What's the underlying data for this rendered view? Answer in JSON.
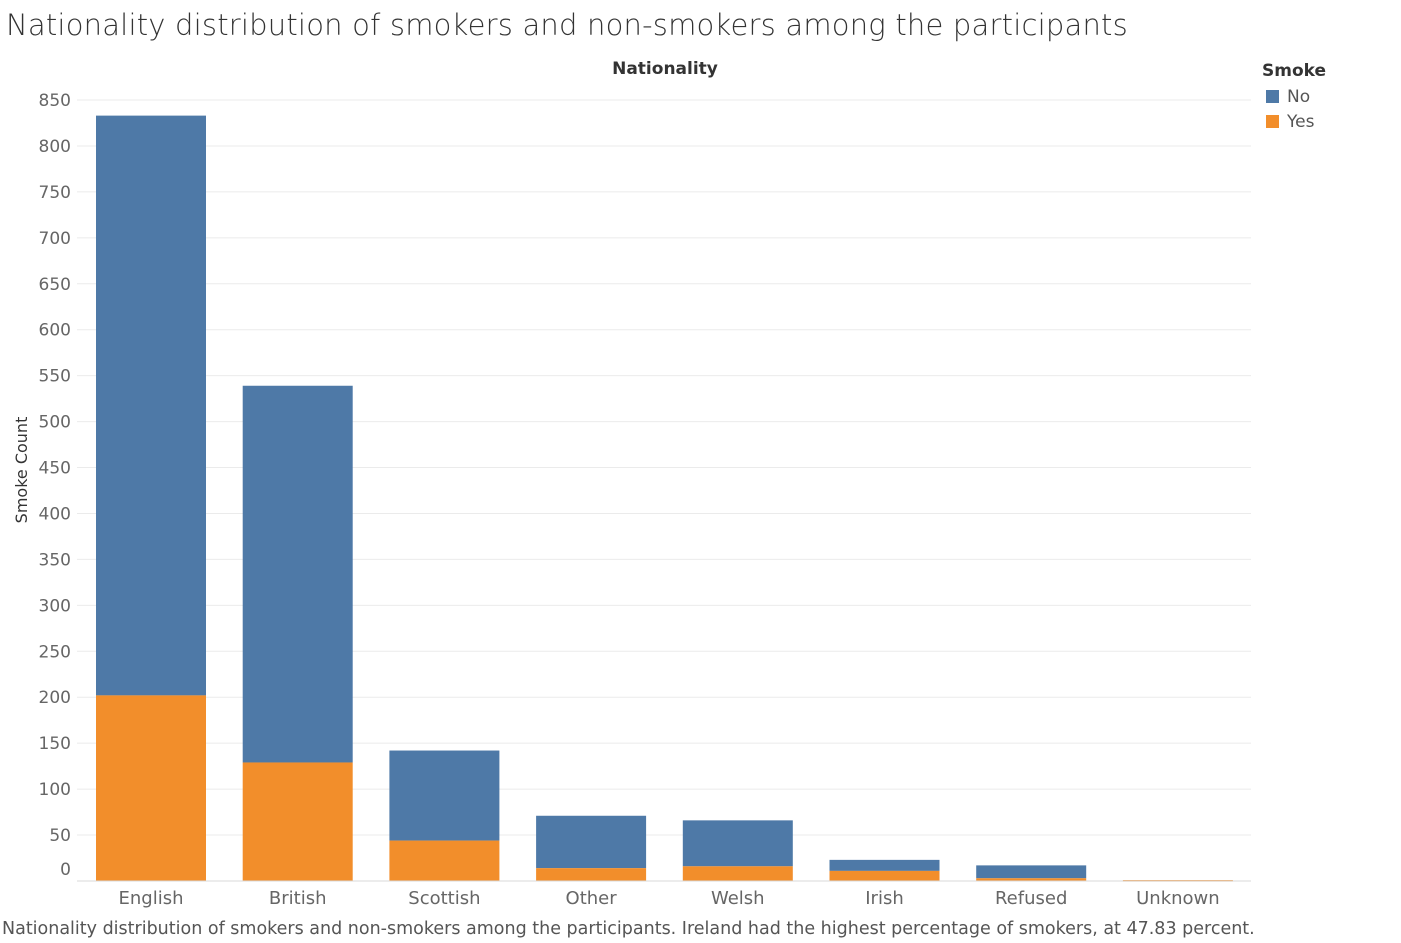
{
  "title": "Nationality distribution of smokers and non-smokers among the participants",
  "caption": "Nationality distribution of smokers and non-smokers among the participants. Ireland had the highest percentage of smokers, at 47.83 percent.",
  "legend": {
    "title": "Smoke",
    "items": [
      {
        "label": "No",
        "color": "#4e79a7"
      },
      {
        "label": "Yes",
        "color": "#f28e2b"
      }
    ]
  },
  "chart_data": {
    "type": "bar",
    "stacked": true,
    "title": "Nationality",
    "xlabel": "Nationality",
    "ylabel": "Smoke Count",
    "ylim": [
      0,
      850
    ],
    "yticks": [
      0,
      50,
      100,
      150,
      200,
      250,
      300,
      350,
      400,
      450,
      500,
      550,
      600,
      650,
      700,
      750,
      800,
      850
    ],
    "categories": [
      "English",
      "British",
      "Scottish",
      "Other",
      "Welsh",
      "Irish",
      "Refused",
      "Unknown"
    ],
    "series": [
      {
        "name": "Yes",
        "color": "#f28e2b",
        "values": [
          202,
          129,
          44,
          14,
          16,
          11,
          3,
          1
        ]
      },
      {
        "name": "No",
        "color": "#4e79a7",
        "values": [
          631,
          410,
          98,
          57,
          50,
          12,
          14,
          0
        ]
      }
    ],
    "grid": true,
    "legend_position": "top-right"
  }
}
